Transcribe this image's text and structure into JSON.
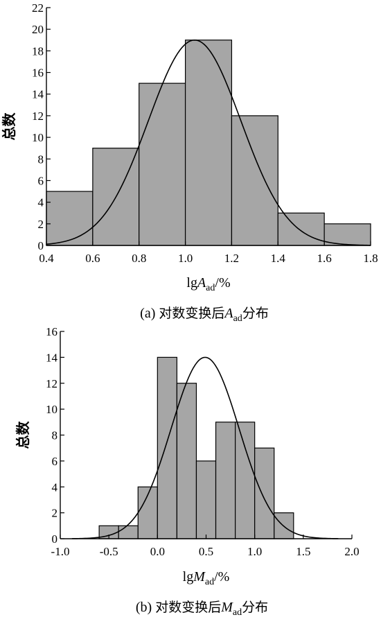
{
  "chart_data": [
    {
      "type": "bar",
      "subtype": "histogram",
      "caption": {
        "prefix": "(a) ",
        "main": "对数变换后",
        "var": "A",
        "sub": "ad",
        "suffix": "分布"
      },
      "xlabel": {
        "prefix": "lg",
        "var": "A",
        "sub": "ad",
        "suffix": "/%"
      },
      "ylabel": "总数",
      "xlim": [
        0.4,
        1.8
      ],
      "ylim": [
        0,
        22
      ],
      "xticks": [
        "0.4",
        "0.6",
        "0.8",
        "1.0",
        "1.2",
        "1.4",
        "1.6",
        "1.8"
      ],
      "yticks": [
        "0",
        "2",
        "4",
        "6",
        "8",
        "10",
        "12",
        "14",
        "16",
        "18",
        "20",
        "22"
      ],
      "bins": [
        {
          "x0": 0.4,
          "x1": 0.6,
          "count": 5
        },
        {
          "x0": 0.6,
          "x1": 0.8,
          "count": 9
        },
        {
          "x0": 0.8,
          "x1": 1.0,
          "count": 15
        },
        {
          "x0": 1.0,
          "x1": 1.2,
          "count": 19
        },
        {
          "x0": 1.2,
          "x1": 1.4,
          "count": 12
        },
        {
          "x0": 1.4,
          "x1": 1.6,
          "count": 3
        },
        {
          "x0": 1.6,
          "x1": 1.8,
          "count": 2
        }
      ],
      "normal_curve": {
        "mean": 1.04,
        "sd": 0.2,
        "peak": 19
      },
      "bar_color": "#a6a6a6"
    },
    {
      "type": "bar",
      "subtype": "histogram",
      "caption": {
        "prefix": "(b) ",
        "main": "对数变换后",
        "var": "M",
        "sub": "ad",
        "suffix": "分布"
      },
      "xlabel": {
        "prefix": "lg",
        "var": "M",
        "sub": "ad",
        "suffix": "/%"
      },
      "ylabel": "总数",
      "xlim": [
        -1.0,
        2.0
      ],
      "ylim": [
        0,
        16
      ],
      "xticks": [
        "-1.0",
        "-0.5",
        "0.0",
        "0.5",
        "1.0",
        "1.5",
        "2.0"
      ],
      "yticks": [
        "0",
        "2",
        "4",
        "6",
        "8",
        "10",
        "12",
        "14",
        "16"
      ],
      "bins": [
        {
          "x0": -0.6,
          "x1": -0.4,
          "count": 1
        },
        {
          "x0": -0.4,
          "x1": -0.2,
          "count": 1
        },
        {
          "x0": -0.2,
          "x1": 0.0,
          "count": 4
        },
        {
          "x0": 0.0,
          "x1": 0.2,
          "count": 14
        },
        {
          "x0": 0.2,
          "x1": 0.4,
          "count": 12
        },
        {
          "x0": 0.4,
          "x1": 0.6,
          "count": 6
        },
        {
          "x0": 0.6,
          "x1": 0.8,
          "count": 9
        },
        {
          "x0": 0.8,
          "x1": 1.0,
          "count": 9
        },
        {
          "x0": 1.0,
          "x1": 1.2,
          "count": 7
        },
        {
          "x0": 1.2,
          "x1": 1.4,
          "count": 2
        }
      ],
      "normal_curve": {
        "mean": 0.49,
        "sd": 0.35,
        "peak": 14,
        "x_from": -0.88,
        "x_to": 1.86
      },
      "bar_color": "#a6a6a6"
    }
  ]
}
